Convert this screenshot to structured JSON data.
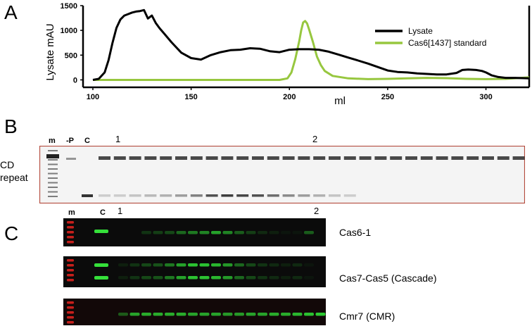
{
  "panels": {
    "a": "A",
    "b": "B",
    "c": "C"
  },
  "chart_data": {
    "type": "line",
    "title": "",
    "xlabel": "ml",
    "ylabel": "Lysate mAU",
    "xlim": [
      95,
      322
    ],
    "ylim": [
      -150,
      1500
    ],
    "xticks": [
      100,
      150,
      200,
      250,
      300
    ],
    "yticks": [
      0,
      500,
      1000,
      1500
    ],
    "legend_position": "top-right",
    "series": [
      {
        "name": "Lysate",
        "color": "#000000",
        "x": [
          100,
          103,
          106,
          108,
          110,
          112,
          114,
          116,
          118,
          120,
          122,
          124,
          126,
          128,
          130,
          132,
          134,
          136,
          140,
          145,
          150,
          155,
          160,
          165,
          170,
          175,
          180,
          185,
          190,
          195,
          200,
          205,
          210,
          215,
          220,
          225,
          230,
          235,
          240,
          245,
          250,
          255,
          260,
          265,
          270,
          275,
          280,
          285,
          288,
          291,
          295,
          298,
          300,
          303,
          306,
          310,
          315,
          322
        ],
        "y": [
          0,
          20,
          150,
          400,
          750,
          1050,
          1220,
          1300,
          1330,
          1360,
          1380,
          1390,
          1410,
          1240,
          1300,
          1150,
          1040,
          950,
          760,
          550,
          440,
          410,
          500,
          560,
          600,
          610,
          640,
          630,
          580,
          560,
          610,
          620,
          620,
          610,
          570,
          510,
          450,
          390,
          330,
          260,
          190,
          160,
          150,
          130,
          120,
          110,
          110,
          140,
          200,
          210,
          200,
          180,
          150,
          90,
          60,
          40,
          40,
          30
        ]
      },
      {
        "name": "Cas6[1437] standard",
        "color": "#97c73f",
        "x": [
          100,
          150,
          195,
          199,
          201,
          203,
          205,
          206,
          207,
          208,
          209,
          210,
          212,
          214,
          216,
          218,
          222,
          230,
          240,
          250,
          260,
          270,
          280,
          290,
          300,
          310,
          322
        ],
        "y": [
          0,
          0,
          0,
          30,
          150,
          420,
          780,
          1000,
          1160,
          1190,
          1140,
          1020,
          760,
          470,
          300,
          180,
          80,
          30,
          15,
          20,
          30,
          40,
          35,
          20,
          15,
          20,
          50
        ]
      }
    ]
  },
  "panel_b": {
    "lane_m": "m",
    "lane_p": "-P",
    "lane_c": "C",
    "marker_1": "1",
    "marker_2": "2",
    "side_line1": "CD",
    "side_line2": "repeat"
  },
  "panel_c": {
    "lane_m": "m",
    "lane_c": "C",
    "marker_1": "1",
    "marker_2": "2",
    "blots": [
      {
        "label": "Cas6-1"
      },
      {
        "label": "Cas7-Cas5 (Cascade)"
      },
      {
        "label": "Cmr7 (CMR)"
      }
    ]
  }
}
